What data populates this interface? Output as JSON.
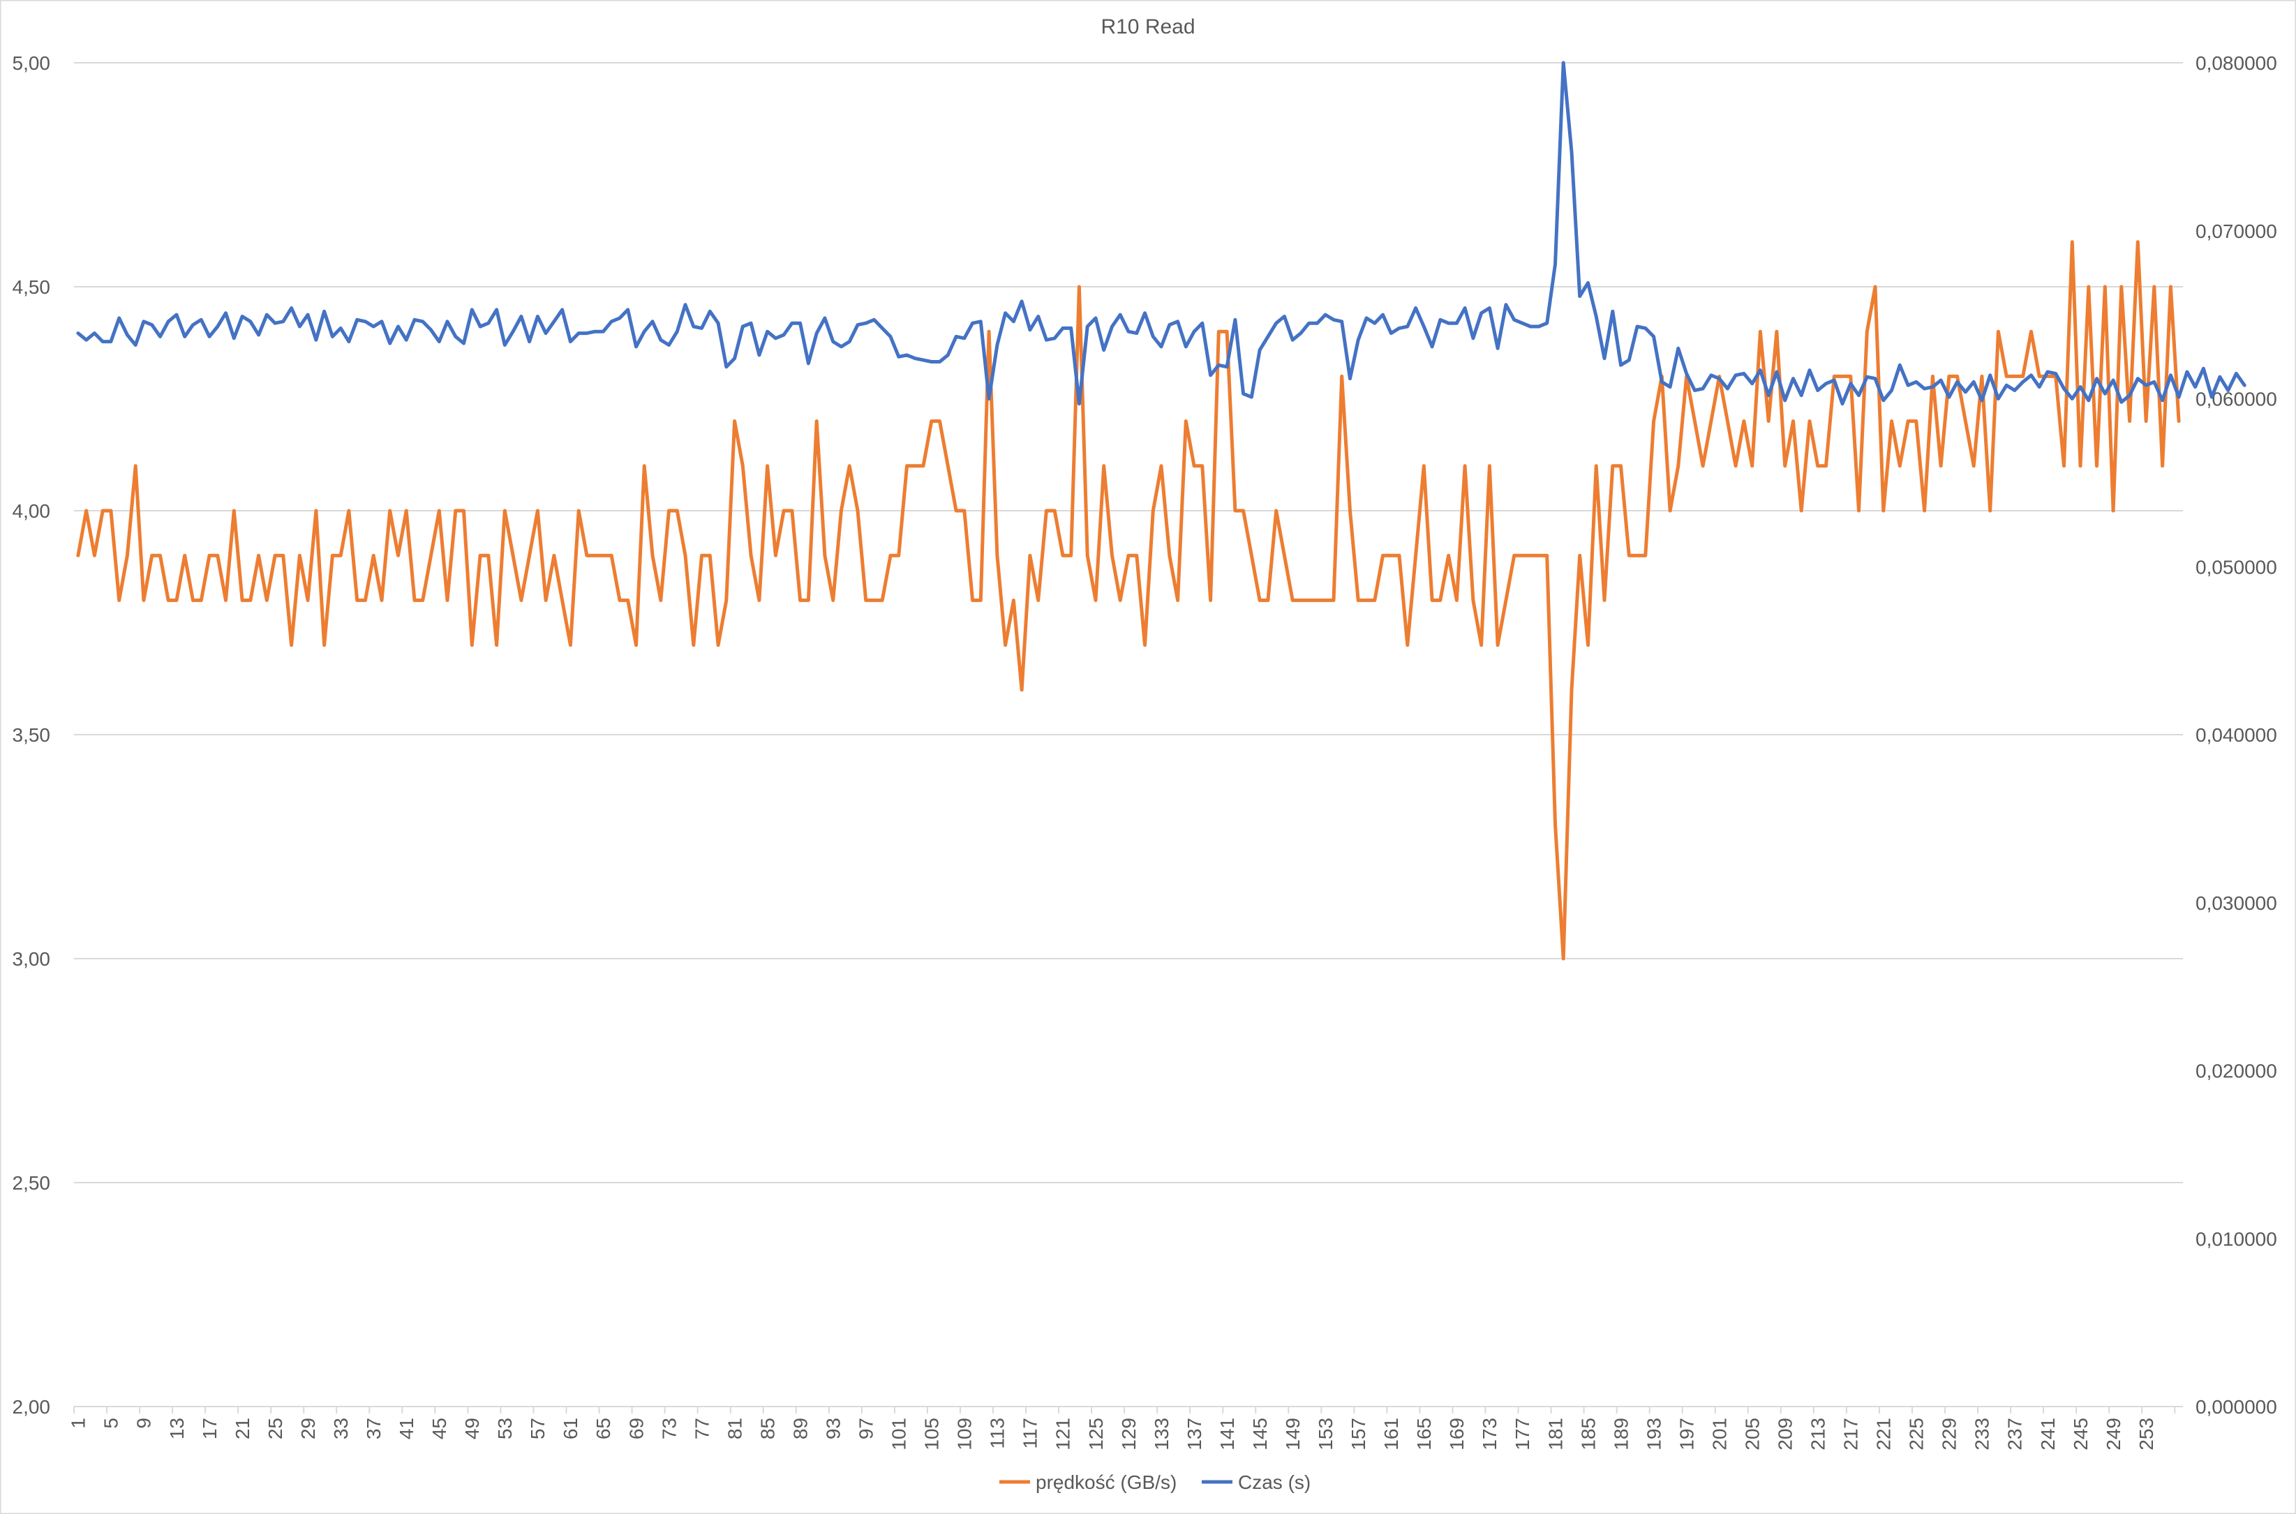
{
  "chart_data": {
    "type": "line",
    "title": "R10 Read",
    "x_ticks": [
      "1",
      "5",
      "9",
      "13",
      "17",
      "21",
      "25",
      "29",
      "33",
      "37",
      "41",
      "45",
      "49",
      "53",
      "57",
      "61",
      "65",
      "69",
      "73",
      "77",
      "81",
      "85",
      "89",
      "93",
      "97",
      "101",
      "105",
      "109",
      "113",
      "117",
      "121",
      "125",
      "129",
      "133",
      "137",
      "141",
      "145",
      "149",
      "153",
      "157",
      "161",
      "165",
      "169",
      "173",
      "177",
      "181",
      "185",
      "189",
      "193",
      "197",
      "201",
      "205",
      "209",
      "213",
      "217",
      "221",
      "225",
      "229",
      "233",
      "237",
      "241",
      "245",
      "249",
      "253"
    ],
    "y_left": {
      "min": 2.0,
      "max": 5.0,
      "step": 0.5,
      "ticks": [
        "2,00",
        "2,50",
        "3,00",
        "3,50",
        "4,00",
        "4,50",
        "5,00"
      ]
    },
    "y_right": {
      "min": 0.0,
      "max": 0.08,
      "step": 0.01,
      "ticks": [
        "0,000000",
        "0,010000",
        "0,020000",
        "0,030000",
        "0,040000",
        "0,050000",
        "0,060000",
        "0,070000",
        "0,080000"
      ]
    },
    "gridlines": true,
    "legend_position": "bottom",
    "colors": {
      "speed": "#ED7D31",
      "time": "#4472C4",
      "grid": "#D9D9D9",
      "text": "#595959"
    },
    "series": [
      {
        "name": "prędkość (GB/s)",
        "axis": "left",
        "values": [
          3.9,
          4.0,
          3.9,
          4.0,
          4.0,
          3.8,
          3.9,
          4.1,
          3.8,
          3.9,
          3.9,
          3.8,
          3.8,
          3.9,
          3.8,
          3.8,
          3.9,
          3.9,
          3.8,
          4.0,
          3.8,
          3.8,
          3.9,
          3.8,
          3.9,
          3.9,
          3.7,
          3.9,
          3.8,
          4.0,
          3.7,
          3.9,
          3.9,
          4.0,
          3.8,
          3.8,
          3.9,
          3.8,
          4.0,
          3.9,
          4.0,
          3.8,
          3.8,
          3.9,
          4.0,
          3.8,
          4.0,
          4.0,
          3.7,
          3.9,
          3.9,
          3.7,
          4.0,
          3.9,
          3.8,
          3.9,
          4.0,
          3.8,
          3.9,
          3.8,
          3.7,
          4.0,
          3.9,
          3.9,
          3.9,
          3.9,
          3.8,
          3.8,
          3.7,
          4.1,
          3.9,
          3.8,
          4.0,
          4.0,
          3.9,
          3.7,
          3.9,
          3.9,
          3.7,
          3.8,
          4.2,
          4.1,
          3.9,
          3.8,
          4.1,
          3.9,
          4.0,
          4.0,
          3.8,
          3.8,
          4.2,
          3.9,
          3.8,
          4.0,
          4.1,
          4.0,
          3.8,
          3.8,
          3.8,
          3.9,
          3.9,
          4.1,
          4.1,
          4.1,
          4.2,
          4.2,
          4.1,
          4.0,
          4.0,
          3.8,
          3.8,
          4.4,
          3.9,
          3.7,
          3.8,
          3.6,
          3.9,
          3.8,
          4.0,
          4.0,
          3.9,
          3.9,
          4.5,
          3.9,
          3.8,
          4.1,
          3.9,
          3.8,
          3.9,
          3.9,
          3.7,
          4.0,
          4.1,
          3.9,
          3.8,
          4.2,
          4.1,
          4.1,
          3.8,
          4.4,
          4.4,
          4.0,
          4.0,
          3.9,
          3.8,
          3.8,
          4.0,
          3.9,
          3.8,
          3.8,
          3.8,
          3.8,
          3.8,
          3.8,
          4.3,
          4.0,
          3.8,
          3.8,
          3.8,
          3.9,
          3.9,
          3.9,
          3.7,
          3.9,
          4.1,
          3.8,
          3.8,
          3.9,
          3.8,
          4.1,
          3.8,
          3.7,
          4.1,
          3.7,
          3.8,
          3.9,
          3.9,
          3.9,
          3.9,
          3.9,
          3.3,
          3.0,
          3.6,
          3.9,
          3.7,
          4.1,
          3.8,
          4.1,
          4.1,
          3.9,
          3.9,
          3.9,
          4.2,
          4.3,
          4.0,
          4.1,
          4.3,
          4.2,
          4.1,
          4.2,
          4.3,
          4.2,
          4.1,
          4.2,
          4.1,
          4.4,
          4.2,
          4.4,
          4.1,
          4.2,
          4.0,
          4.2,
          4.1,
          4.1,
          4.3,
          4.3,
          4.3,
          4.0,
          4.4,
          4.5,
          4.0,
          4.2,
          4.1,
          4.2,
          4.2,
          4.0,
          4.3,
          4.1,
          4.3,
          4.3,
          4.2,
          4.1,
          4.3,
          4.0,
          4.4,
          4.3,
          4.3,
          4.3,
          4.4,
          4.3,
          4.3,
          4.3,
          4.1,
          4.6,
          4.1,
          4.5,
          4.1,
          4.5,
          4.0,
          4.5,
          4.2,
          4.6,
          4.2,
          4.5,
          4.1,
          4.5,
          4.2
        ]
      },
      {
        "name": "Czas (s)",
        "axis": "right",
        "values": [
          0.0639,
          0.0635,
          0.0639,
          0.0634,
          0.0634,
          0.0648,
          0.0638,
          0.0632,
          0.0646,
          0.0644,
          0.0637,
          0.0646,
          0.065,
          0.0637,
          0.0644,
          0.0647,
          0.0637,
          0.0643,
          0.0651,
          0.0636,
          0.0649,
          0.0646,
          0.0638,
          0.065,
          0.0645,
          0.0646,
          0.0654,
          0.0643,
          0.065,
          0.0635,
          0.0652,
          0.0637,
          0.0642,
          0.0634,
          0.0647,
          0.0646,
          0.0643,
          0.0646,
          0.0633,
          0.0643,
          0.0635,
          0.0647,
          0.0646,
          0.0641,
          0.0634,
          0.0646,
          0.0637,
          0.0633,
          0.0653,
          0.0643,
          0.0645,
          0.0653,
          0.0632,
          0.064,
          0.0649,
          0.0634,
          0.0649,
          0.0639,
          0.0646,
          0.0653,
          0.0634,
          0.0639,
          0.0639,
          0.064,
          0.064,
          0.0646,
          0.0648,
          0.0653,
          0.0631,
          0.064,
          0.0646,
          0.0635,
          0.0632,
          0.064,
          0.0656,
          0.0643,
          0.0642,
          0.0652,
          0.0645,
          0.0619,
          0.0624,
          0.0643,
          0.0645,
          0.0626,
          0.064,
          0.0636,
          0.0638,
          0.0645,
          0.0645,
          0.0621,
          0.0639,
          0.0648,
          0.0634,
          0.0631,
          0.0634,
          0.0644,
          0.0645,
          0.0647,
          0.0642,
          0.0637,
          0.0625,
          0.0626,
          0.0624,
          0.0623,
          0.0622,
          0.0622,
          0.0626,
          0.0637,
          0.0636,
          0.0645,
          0.0646,
          0.06,
          0.0632,
          0.0651,
          0.0646,
          0.0658,
          0.0641,
          0.0649,
          0.0635,
          0.0636,
          0.0642,
          0.0642,
          0.0597,
          0.0643,
          0.0648,
          0.0629,
          0.0643,
          0.065,
          0.064,
          0.0639,
          0.0651,
          0.0637,
          0.0631,
          0.0644,
          0.0646,
          0.0631,
          0.064,
          0.0645,
          0.0614,
          0.062,
          0.0619,
          0.0647,
          0.0603,
          0.0601,
          0.0629,
          0.0637,
          0.0645,
          0.0649,
          0.0635,
          0.0639,
          0.0645,
          0.0645,
          0.065,
          0.0647,
          0.0646,
          0.0612,
          0.0635,
          0.0648,
          0.0645,
          0.065,
          0.0639,
          0.0642,
          0.0643,
          0.0654,
          0.0643,
          0.0631,
          0.0647,
          0.0645,
          0.0645,
          0.0654,
          0.0636,
          0.0651,
          0.0654,
          0.063,
          0.0656,
          0.0647,
          0.0645,
          0.0643,
          0.0643,
          0.0645,
          0.068,
          0.08,
          0.0747,
          0.0661,
          0.0669,
          0.0649,
          0.0624,
          0.0652,
          0.062,
          0.0623,
          0.0643,
          0.0642,
          0.0637,
          0.061,
          0.0607,
          0.063,
          0.0615,
          0.0605,
          0.0606,
          0.0614,
          0.0612,
          0.0606,
          0.0614,
          0.0615,
          0.0609,
          0.0617,
          0.0602,
          0.0616,
          0.0599,
          0.0612,
          0.0602,
          0.0617,
          0.0605,
          0.0609,
          0.0611,
          0.0597,
          0.0609,
          0.0602,
          0.0613,
          0.0612,
          0.0599,
          0.0605,
          0.062,
          0.0608,
          0.061,
          0.0606,
          0.0607,
          0.0611,
          0.0601,
          0.061,
          0.0604,
          0.061,
          0.0599,
          0.0614,
          0.06,
          0.0608,
          0.0605,
          0.061,
          0.0614,
          0.0607,
          0.0616,
          0.0615,
          0.0606,
          0.06,
          0.0607,
          0.0599,
          0.0612,
          0.0603,
          0.0611,
          0.0598,
          0.0602,
          0.0612,
          0.0608,
          0.061,
          0.0599,
          0.0614,
          0.0601,
          0.0616,
          0.0607,
          0.0618,
          0.0601,
          0.0613,
          0.0605,
          0.0615,
          0.0608
        ]
      }
    ]
  }
}
